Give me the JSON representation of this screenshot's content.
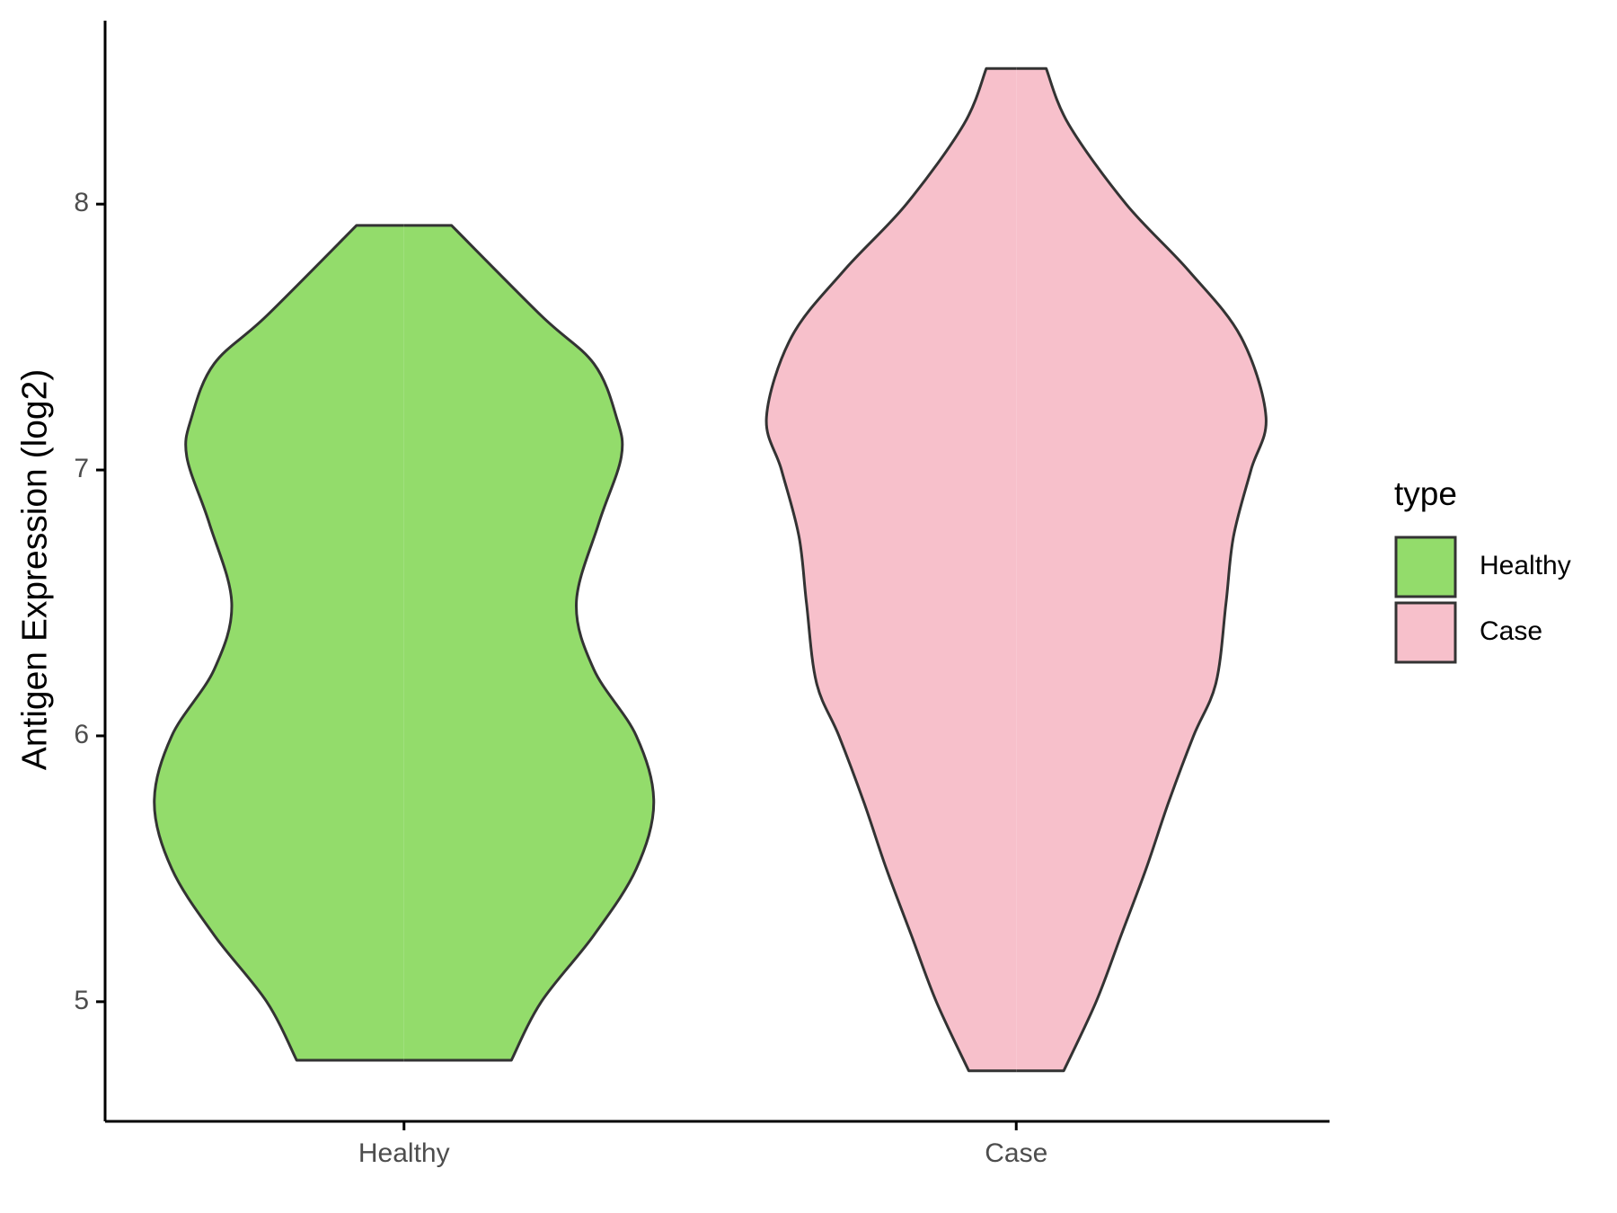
{
  "chart_data": {
    "type": "violin",
    "y_label": "Antigen Expression (log2)",
    "categories": [
      "Healthy",
      "Case"
    ],
    "ylim": [
      4.55,
      8.69
    ],
    "yticks": [
      5,
      6,
      7,
      8
    ],
    "legend_title": "type",
    "legend_position": "right",
    "series": [
      {
        "name": "Healthy",
        "color": "#93dc6b",
        "y": [
          7.92,
          7.58,
          7.4,
          7.2,
          7.05,
          6.8,
          6.5,
          6.25,
          6.0,
          5.75,
          5.5,
          5.25,
          5.0,
          4.78
        ],
        "width": [
          0.19,
          0.55,
          0.76,
          0.85,
          0.87,
          0.78,
          0.69,
          0.76,
          0.93,
          1.0,
          0.93,
          0.76,
          0.55,
          0.43
        ]
      },
      {
        "name": "Case",
        "color": "#f7c0cb",
        "y": [
          8.51,
          8.3,
          8.0,
          7.75,
          7.5,
          7.2,
          7.0,
          6.75,
          6.5,
          6.2,
          6.0,
          5.75,
          5.5,
          5.25,
          5.0,
          4.74
        ],
        "width": [
          0.12,
          0.21,
          0.44,
          0.69,
          0.9,
          1.0,
          0.94,
          0.87,
          0.84,
          0.8,
          0.71,
          0.61,
          0.52,
          0.42,
          0.32,
          0.19
        ]
      }
    ]
  }
}
